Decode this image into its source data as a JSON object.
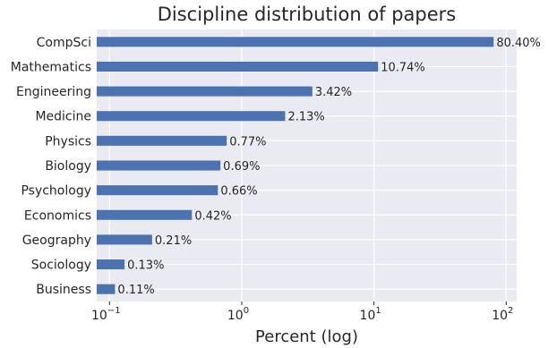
{
  "chart_data": {
    "type": "bar",
    "orientation": "horizontal",
    "title": "Discipline distribution of papers",
    "xlabel": "Percent (log)",
    "ylabel": "",
    "x_scale": "log",
    "xlim": [
      0.08,
      120
    ],
    "x_ticks": [
      {
        "value": 0.1,
        "base": "10",
        "exp": "−1"
      },
      {
        "value": 1,
        "base": "10",
        "exp": "0"
      },
      {
        "value": 10,
        "base": "10",
        "exp": "1"
      },
      {
        "value": 100,
        "base": "10",
        "exp": "2"
      }
    ],
    "grid": true,
    "categories": [
      "CompSci",
      "Mathematics",
      "Engineering",
      "Medicine",
      "Physics",
      "Biology",
      "Psychology",
      "Economics",
      "Geography",
      "Sociology",
      "Business"
    ],
    "values": [
      80.4,
      10.74,
      3.42,
      2.13,
      0.77,
      0.69,
      0.66,
      0.42,
      0.21,
      0.13,
      0.11
    ],
    "value_labels": [
      "80.40%",
      "10.74%",
      "3.42%",
      "2.13%",
      "0.77%",
      "0.69%",
      "0.66%",
      "0.42%",
      "0.21%",
      "0.13%",
      "0.11%"
    ],
    "colors": {
      "bar": "#4c72b0",
      "background": "#eaeaf2",
      "grid": "#ffffff"
    }
  }
}
